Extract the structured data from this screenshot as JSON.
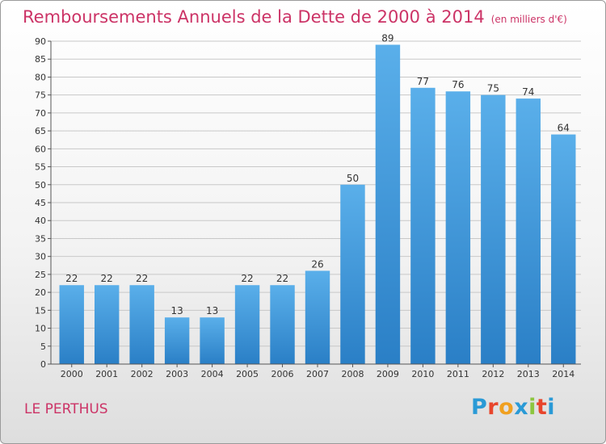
{
  "chart_data": {
    "type": "bar",
    "title": "Remboursements Annuels de la Dette de 2000 à 2014",
    "subtitle": "(en milliers d'€)",
    "categories": [
      "2000",
      "2001",
      "2002",
      "2003",
      "2004",
      "2005",
      "2006",
      "2007",
      "2008",
      "2009",
      "2010",
      "2011",
      "2012",
      "2013",
      "2014"
    ],
    "values": [
      22,
      22,
      22,
      13,
      13,
      22,
      22,
      26,
      50,
      89,
      77,
      76,
      75,
      74,
      64
    ],
    "ylim": [
      0,
      90
    ],
    "yticks": [
      0,
      5,
      10,
      15,
      20,
      25,
      30,
      35,
      40,
      45,
      50,
      55,
      60,
      65,
      70,
      75,
      80,
      85,
      90
    ],
    "grid": "horizontal",
    "legend": "none",
    "colors": {
      "bar_top": "#5aafea",
      "bar_bottom": "#2a7fc6",
      "title": "#cc3366"
    }
  },
  "footer": {
    "commune": "LE PERTHUS",
    "brand": "Proxiti",
    "brand_colors": [
      "#2a9ad6",
      "#e8452c",
      "#f0a020",
      "#2a9ad6",
      "#8cc63f",
      "#e8452c",
      "#2a9ad6"
    ]
  }
}
